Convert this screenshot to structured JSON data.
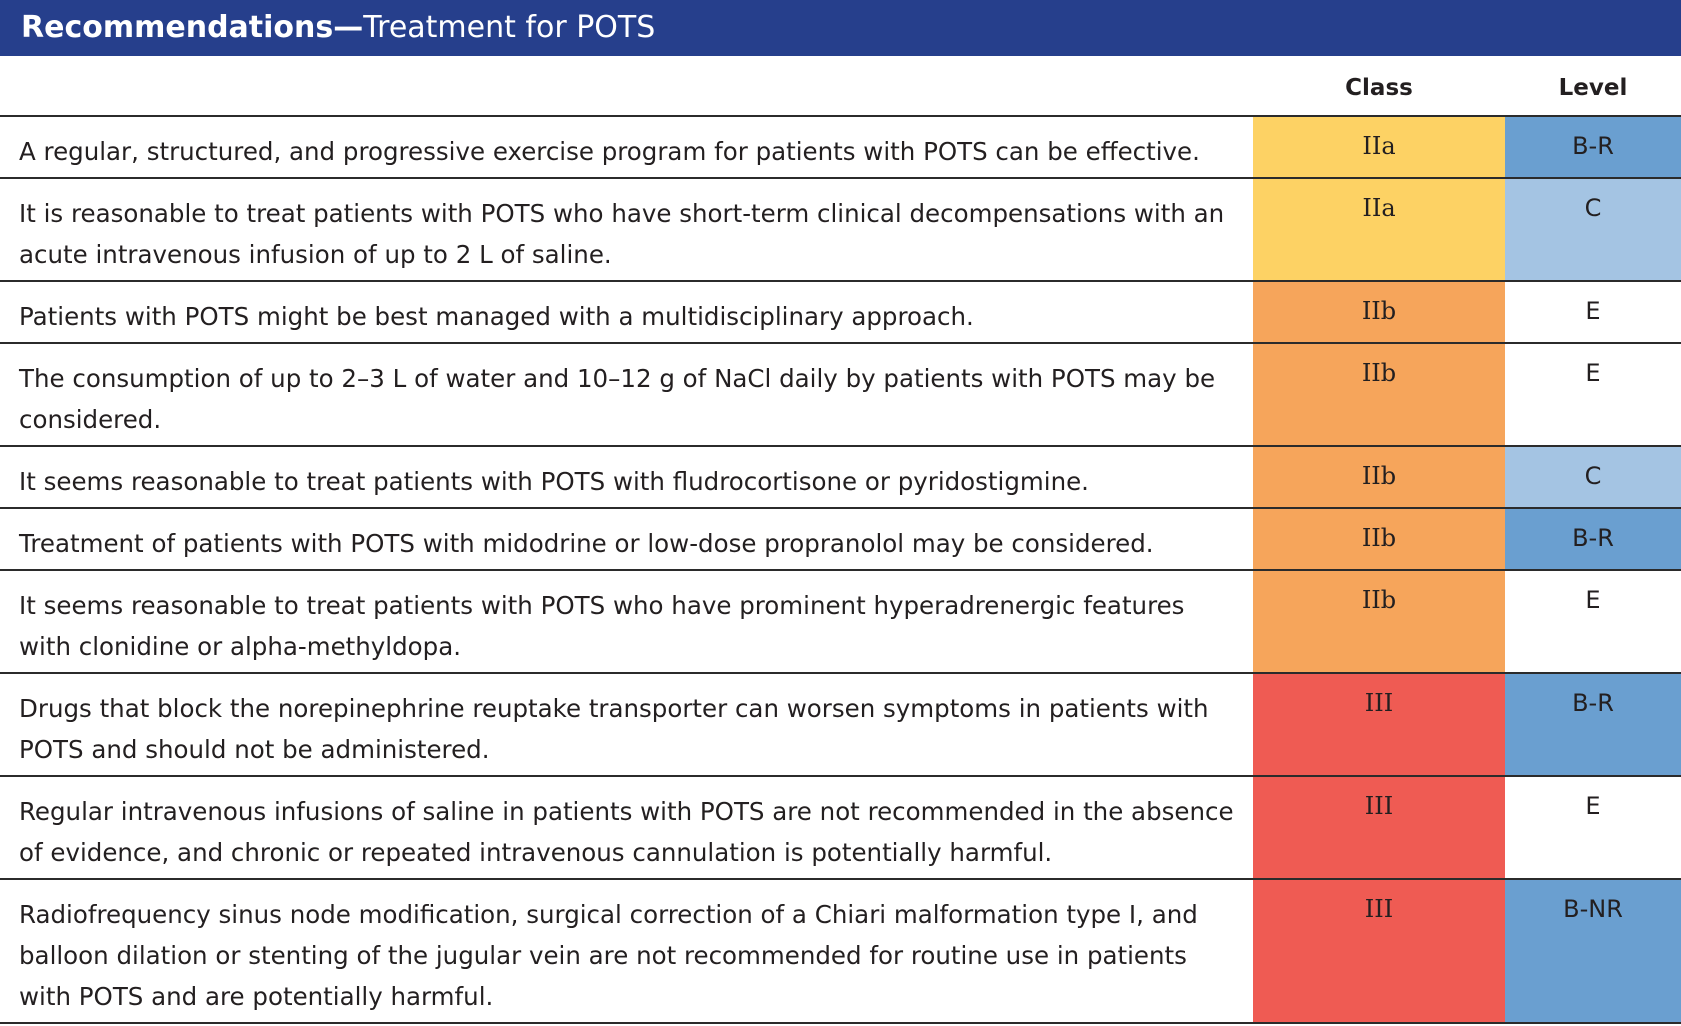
{
  "header": {
    "title_bold": "Recommendations—",
    "title_rest": "Treatment for POTS"
  },
  "columns": {
    "class": "Class",
    "level": "Level"
  },
  "colors": {
    "banner": "#263f8c",
    "class_IIa": "#fdd264",
    "class_IIb": "#f6a55b",
    "class_III": "#ef5b53",
    "level_B": "#6a9fd0",
    "level_C": "#a4c4e3",
    "level_E": "#ffffff"
  },
  "rows": [
    {
      "lines": [
        "A regular, structured, and progressive exercise program for patients with POTS can be effective."
      ],
      "class": "IIa",
      "level": "B-R"
    },
    {
      "lines": [
        "It is reasonable to treat patients with POTS who have short-term clinical decompensations with an",
        "acute intravenous infusion of up to 2 L of saline."
      ],
      "class": "IIa",
      "level": "C"
    },
    {
      "lines": [
        "Patients with POTS might be best managed with a multidisciplinary approach."
      ],
      "class": "IIb",
      "level": "E"
    },
    {
      "lines": [
        "The consumption of up to 2–3 L of water and 10–12 g of NaCl daily by patients with POTS may be",
        "considered."
      ],
      "class": "IIb",
      "level": "E"
    },
    {
      "lines": [
        "It seems reasonable to treat patients with POTS with fludrocortisone or pyridostigmine."
      ],
      "class": "IIb",
      "level": "C"
    },
    {
      "lines": [
        "Treatment of patients with POTS with midodrine or low-dose propranolol may be considered."
      ],
      "class": "IIb",
      "level": "B-R"
    },
    {
      "lines": [
        "It seems reasonable to treat patients with POTS who have prominent hyperadrenergic features",
        "with clonidine or alpha-methyldopa."
      ],
      "class": "IIb",
      "level": "E"
    },
    {
      "lines": [
        "Drugs that block the norepinephrine reuptake transporter can worsen symptoms in patients with",
        "POTS and should not be administered."
      ],
      "class": "III",
      "level": "B-R"
    },
    {
      "lines": [
        "Regular intravenous infusions of saline in patients with POTS are not recommended in the absence",
        "of evidence, and chronic or repeated intravenous cannulation is potentially harmful."
      ],
      "class": "III",
      "level": "E"
    },
    {
      "lines": [
        "Radiofrequency sinus node modification, surgical correction of a Chiari malformation type I, and",
        "balloon dilation or stenting of the jugular vein are not recommended for routine use in patients",
        "with POTS and are potentially harmful."
      ],
      "class": "III",
      "level": "B-NR"
    }
  ]
}
